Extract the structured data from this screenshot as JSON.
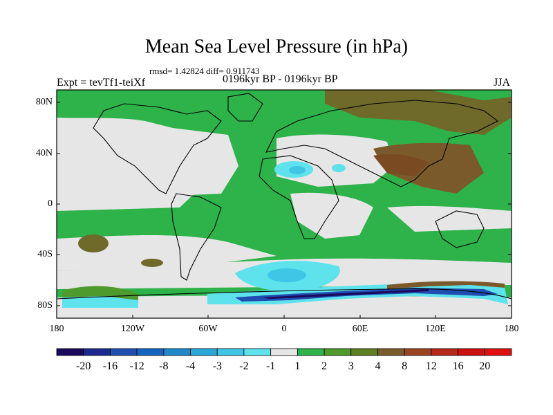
{
  "header": {
    "title": "Mean Sea Level Pressure (in hPa)",
    "stats": "rmsd= 1.42824  diff= 0.911743",
    "experiment": "Expt = tevTf1-teiXf",
    "period": "0196kyr BP - 0196kyr BP",
    "season": "JJA"
  },
  "map": {
    "lat_labels": [
      "80N",
      "40N",
      "0",
      "40S",
      "80S"
    ],
    "lon_labels": [
      "180",
      "120W",
      "60W",
      "0",
      "60E",
      "120E",
      "180"
    ]
  },
  "colorbar": {
    "labels": [
      "-20",
      "-16",
      "-12",
      "-8",
      "-4",
      "-3",
      "-2",
      "-1",
      "1",
      "2",
      "3",
      "4",
      "8",
      "12",
      "16",
      "20"
    ],
    "colors": [
      "#1a0a5e",
      "#1b2a8c",
      "#1f4eb0",
      "#1565c0",
      "#1e88c8",
      "#29a8d8",
      "#3fc6e6",
      "#5ee3ec",
      "#e6e6e6",
      "#2db34a",
      "#4f9a2d",
      "#5f7f23",
      "#7a5a2a",
      "#9a4422",
      "#b6281a",
      "#cc1111",
      "#e01010"
    ]
  },
  "colors": {
    "land_outline": "#000000",
    "neutral": "#e6e6e6",
    "green": "#2db34a",
    "dark_green": "#4f9a2d",
    "olive": "#6f6a2a",
    "brown": "#7a5a2a",
    "cyan": "#5ee3ec",
    "blue": "#1f4eb0",
    "navy": "#1a0a5e"
  }
}
